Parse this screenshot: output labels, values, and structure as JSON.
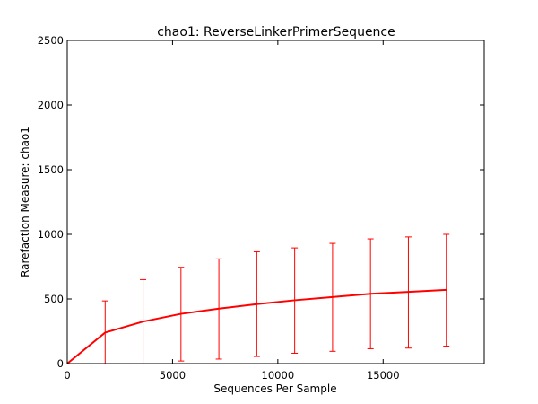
{
  "chart_data": {
    "type": "line",
    "title": "chao1: ReverseLinkerPrimerSequence",
    "xlabel": "Sequences Per Sample",
    "ylabel": "Rarefaction Measure: chao1",
    "xlim": [
      0,
      19800
    ],
    "ylim": [
      0,
      2500
    ],
    "x_ticks": [
      0,
      5000,
      10000,
      15000
    ],
    "x_tick_labels": [
      "0",
      "5000",
      "10000",
      "15000"
    ],
    "y_ticks": [
      0,
      500,
      1000,
      1500,
      2000,
      2500
    ],
    "y_tick_labels": [
      "0",
      "500",
      "1000",
      "1500",
      "2000",
      "2500"
    ],
    "grid": false,
    "series": [
      {
        "color": "#ff0000",
        "x": [
          0,
          1800,
          3600,
          5400,
          7200,
          9000,
          10800,
          12600,
          14400,
          16200,
          18000
        ],
        "y": [
          0,
          240,
          325,
          385,
          425,
          460,
          490,
          515,
          540,
          555,
          570
        ],
        "err_low": [
          0,
          0,
          0,
          20,
          35,
          55,
          80,
          95,
          115,
          120,
          135
        ],
        "err_high": [
          0,
          485,
          650,
          745,
          810,
          865,
          895,
          930,
          965,
          980,
          1000
        ]
      }
    ]
  }
}
